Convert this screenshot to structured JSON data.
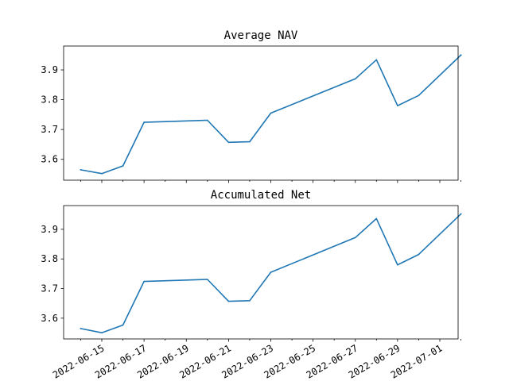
{
  "chart_data": [
    {
      "type": "line",
      "title": "Average NAV",
      "xlabel": "",
      "ylabel": "",
      "grid": false,
      "ylim": [
        3.53,
        3.98
      ],
      "yticks": [
        3.6,
        3.7,
        3.8,
        3.9
      ],
      "ytick_labels": [
        "3.6",
        "3.7",
        "3.8",
        "3.9"
      ],
      "x_tick_labels_visible": false,
      "color": "#1f77b4",
      "series": [
        {
          "x": [
            "2022-06-14",
            "2022-06-15",
            "2022-06-16",
            "2022-06-17",
            "2022-06-20",
            "2022-06-21",
            "2022-06-22",
            "2022-06-23",
            "2022-06-27",
            "2022-06-28",
            "2022-06-29",
            "2022-06-30",
            "2022-07-02"
          ],
          "values": [
            3.565,
            3.552,
            3.578,
            3.724,
            3.731,
            3.657,
            3.659,
            3.755,
            3.87,
            3.934,
            3.78,
            3.814,
            3.95
          ]
        }
      ]
    },
    {
      "type": "line",
      "title": "Accumulated Net",
      "xlabel": "",
      "ylabel": "",
      "grid": false,
      "ylim": [
        3.53,
        3.98
      ],
      "yticks": [
        3.6,
        3.7,
        3.8,
        3.9
      ],
      "ytick_labels": [
        "3.6",
        "3.7",
        "3.8",
        "3.9"
      ],
      "color": "#1f77b4",
      "xticks": [
        "2022-06-15",
        "2022-06-17",
        "2022-06-19",
        "2022-06-21",
        "2022-06-23",
        "2022-06-25",
        "2022-06-27",
        "2022-06-29",
        "2022-07-01"
      ],
      "minor_xticks": [
        "2022-06-14",
        "2022-06-16",
        "2022-06-18",
        "2022-06-20",
        "2022-06-22",
        "2022-06-24",
        "2022-06-26",
        "2022-06-28",
        "2022-06-30",
        "2022-07-02"
      ],
      "series": [
        {
          "x": [
            "2022-06-14",
            "2022-06-15",
            "2022-06-16",
            "2022-06-17",
            "2022-06-20",
            "2022-06-21",
            "2022-06-22",
            "2022-06-23",
            "2022-06-27",
            "2022-06-28",
            "2022-06-29",
            "2022-06-30",
            "2022-07-02"
          ],
          "values": [
            3.565,
            3.551,
            3.577,
            3.724,
            3.731,
            3.657,
            3.659,
            3.755,
            3.872,
            3.936,
            3.78,
            3.815,
            3.952
          ]
        }
      ]
    }
  ]
}
